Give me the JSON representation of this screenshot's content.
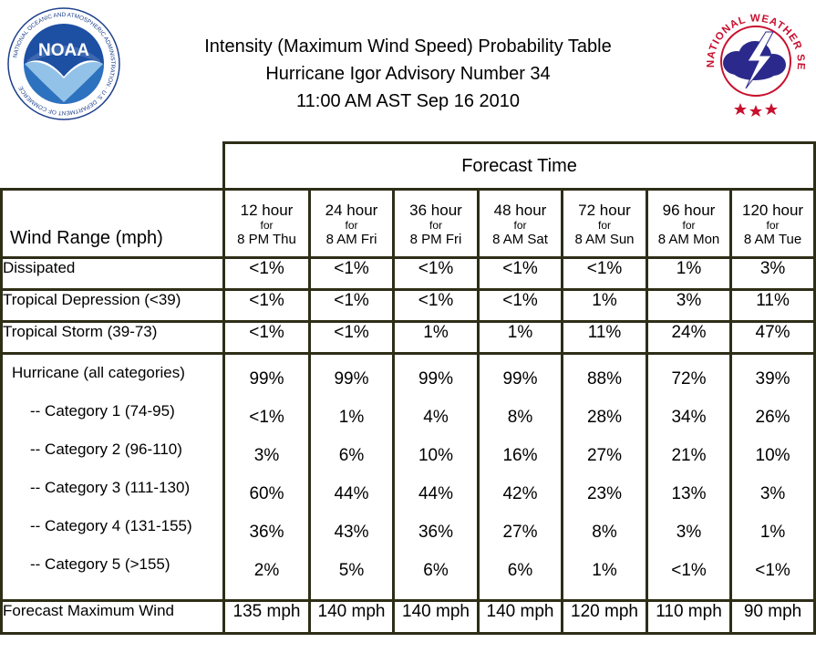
{
  "header": {
    "title_lines": [
      "Intensity (Maximum Wind Speed) Probability Table",
      "Hurricane Igor Advisory Number 34",
      "11:00 AM AST Sep 16 2010"
    ],
    "noaa_logo_text": "NOAA",
    "noaa_ring_text": "NATIONAL OCEANIC AND ATMOSPHERIC ADMINISTRATION · U.S. DEPARTMENT OF COMMERCE",
    "nws_ring_text": "NATIONAL WEATHER SERVICE"
  },
  "table": {
    "forecast_time_label": "Forecast Time",
    "wind_range_label": "Wind Range (mph)",
    "columns": [
      {
        "hours": "12 hour",
        "for": "for",
        "time": "8 PM Thu"
      },
      {
        "hours": "24 hour",
        "for": "for",
        "time": "8 AM Fri"
      },
      {
        "hours": "36 hour",
        "for": "for",
        "time": "8 PM Fri"
      },
      {
        "hours": "48 hour",
        "for": "for",
        "time": "8 AM Sat"
      },
      {
        "hours": "72 hour",
        "for": "for",
        "time": "8 AM Sun"
      },
      {
        "hours": "96 hour",
        "for": "for",
        "time": "8 AM Mon"
      },
      {
        "hours": "120 hour",
        "for": "for",
        "time": "8 AM Tue"
      }
    ],
    "rows": [
      {
        "label": "Dissipated",
        "values": [
          "<1%",
          "<1%",
          "<1%",
          "<1%",
          "<1%",
          "1%",
          "3%"
        ]
      },
      {
        "label": "Tropical Depression (<39)",
        "values": [
          "<1%",
          "<1%",
          "<1%",
          "<1%",
          "1%",
          "3%",
          "11%"
        ]
      },
      {
        "label": "Tropical Storm (39-73)",
        "values": [
          "<1%",
          "<1%",
          "1%",
          "1%",
          "11%",
          "24%",
          "47%"
        ]
      }
    ],
    "hurricane": {
      "label": "Hurricane (all categories)",
      "values": [
        "99%",
        "99%",
        "99%",
        "99%",
        "88%",
        "72%",
        "39%"
      ],
      "categories": [
        {
          "label": "-- Category 1 (74-95)",
          "values": [
            "<1%",
            "1%",
            "4%",
            "8%",
            "28%",
            "34%",
            "26%"
          ]
        },
        {
          "label": "-- Category 2 (96-110)",
          "values": [
            "3%",
            "6%",
            "10%",
            "16%",
            "27%",
            "21%",
            "10%"
          ]
        },
        {
          "label": "-- Category 3 (111-130)",
          "values": [
            "60%",
            "44%",
            "44%",
            "42%",
            "23%",
            "13%",
            "3%"
          ]
        },
        {
          "label": "-- Category 4 (131-155)",
          "values": [
            "36%",
            "43%",
            "36%",
            "27%",
            "8%",
            "3%",
            "1%"
          ]
        },
        {
          "label": "-- Category 5 (>155)",
          "values": [
            "2%",
            "5%",
            "6%",
            "6%",
            "1%",
            "<1%",
            "<1%"
          ]
        }
      ]
    },
    "forecast_max_wind": {
      "label": "Forecast Maximum Wind",
      "values": [
        "135 mph",
        "140 mph",
        "140 mph",
        "140 mph",
        "120 mph",
        "110 mph",
        "90 mph"
      ]
    }
  }
}
